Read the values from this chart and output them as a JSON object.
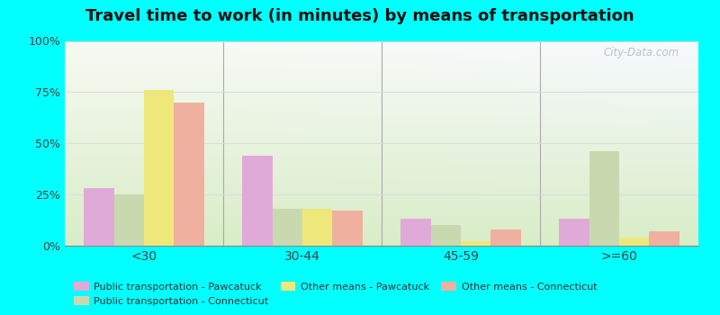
{
  "title": "Travel time to work (in minutes) by means of transportation",
  "categories": [
    "<30",
    "30-44",
    "45-59",
    ">=60"
  ],
  "series": {
    "Public transportation - Pawcatuck": [
      28,
      44,
      13,
      13
    ],
    "Public transportation - Connecticut": [
      25,
      18,
      10,
      46
    ],
    "Other means - Pawcatuck": [
      76,
      18,
      2,
      4
    ],
    "Other means - Connecticut": [
      70,
      17,
      8,
      7
    ]
  },
  "colors": {
    "Public transportation - Pawcatuck": "#e0aad8",
    "Public transportation - Connecticut": "#c8d9b0",
    "Other means - Pawcatuck": "#eee87a",
    "Other means - Connecticut": "#f0b0a0"
  },
  "ylim": [
    0,
    100
  ],
  "yticks": [
    0,
    25,
    50,
    75,
    100
  ],
  "ytick_labels": [
    "0%",
    "25%",
    "50%",
    "75%",
    "100%"
  ],
  "outer_background": "#00ffff",
  "grid_color": "#dddddd",
  "watermark": "City-Data.com",
  "legend_order": [
    "Public transportation - Pawcatuck",
    "Public transportation - Connecticut",
    "Other means - Pawcatuck",
    "Other means - Connecticut"
  ]
}
